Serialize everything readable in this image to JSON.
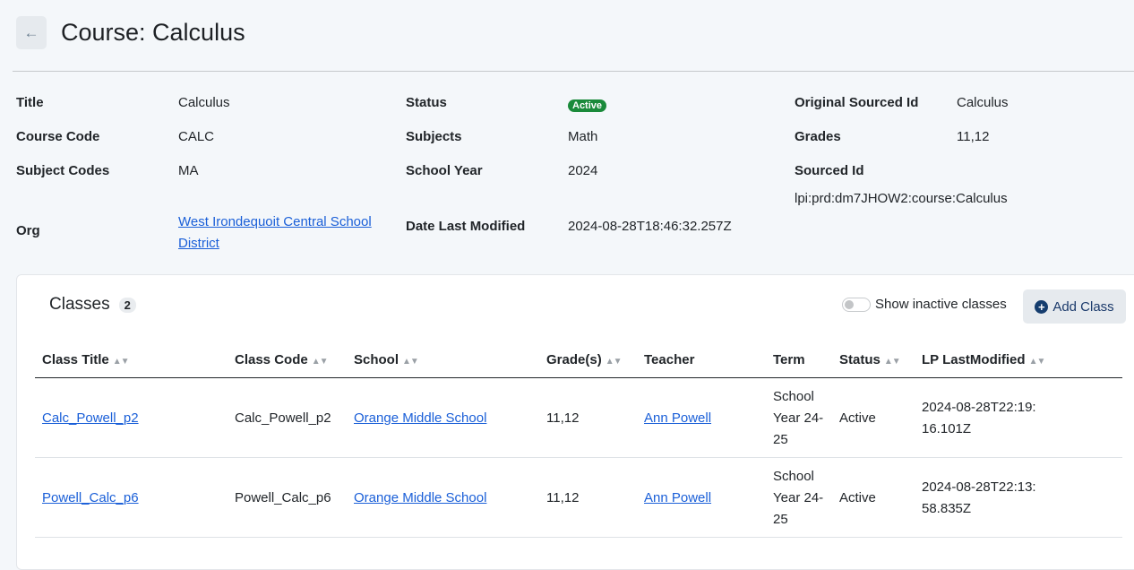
{
  "header": {
    "back_icon": "arrow-left-icon",
    "title": "Course: Calculus"
  },
  "details": [
    {
      "label": "Title",
      "value": "Calculus"
    },
    {
      "label": "Course Code",
      "value": "CALC"
    },
    {
      "label": "Subject Codes",
      "value": "MA"
    },
    {
      "label": "Org",
      "value": "West Irondequoit Central School District"
    },
    {
      "label": "Status",
      "value": "Active"
    },
    {
      "label": "Subjects",
      "value": "Math"
    },
    {
      "label": "School Year",
      "value": "2024"
    },
    {
      "label": "Date Last Modified",
      "value": "2024-08-28T18:46:32.257Z"
    },
    {
      "label": "Original Sourced Id",
      "value": "Calculus"
    },
    {
      "label": "Grades",
      "value": "11,12"
    },
    {
      "label": "Sourced Id",
      "value": "lpi:prd:dm7JHOW2:course:Calculus"
    }
  ],
  "colors": {
    "active": "#1a8a3a",
    "link": "#1a5fd8",
    "add_icon": "#153d6e"
  },
  "classes": {
    "heading": "Classes",
    "count": "2",
    "toggle_label": "Show inactive classes",
    "toggle_on": false,
    "add_label": "Add Class",
    "columns": [
      "Class Title",
      "Class Code",
      "School",
      "Grade(s)",
      "Teacher",
      "Term",
      "Status",
      "LP LastModified"
    ],
    "rows": [
      {
        "title": "Calc_Powell_p2",
        "code": "Calc_Powell_p2",
        "school": "Orange Middle School",
        "grades": "11,12",
        "teacher": "Ann Powell",
        "term": "School Year 24-25",
        "status": "Active",
        "modified": "2024-08-28T22:19:16.101Z"
      },
      {
        "title": "Powell_Calc_p6",
        "code": "Powell_Calc_p6",
        "school": "Orange Middle School",
        "grades": "11,12",
        "teacher": "Ann Powell",
        "term": "School Year 24-25",
        "status": "Active",
        "modified": "2024-08-28T22:13:58.835Z"
      }
    ]
  }
}
